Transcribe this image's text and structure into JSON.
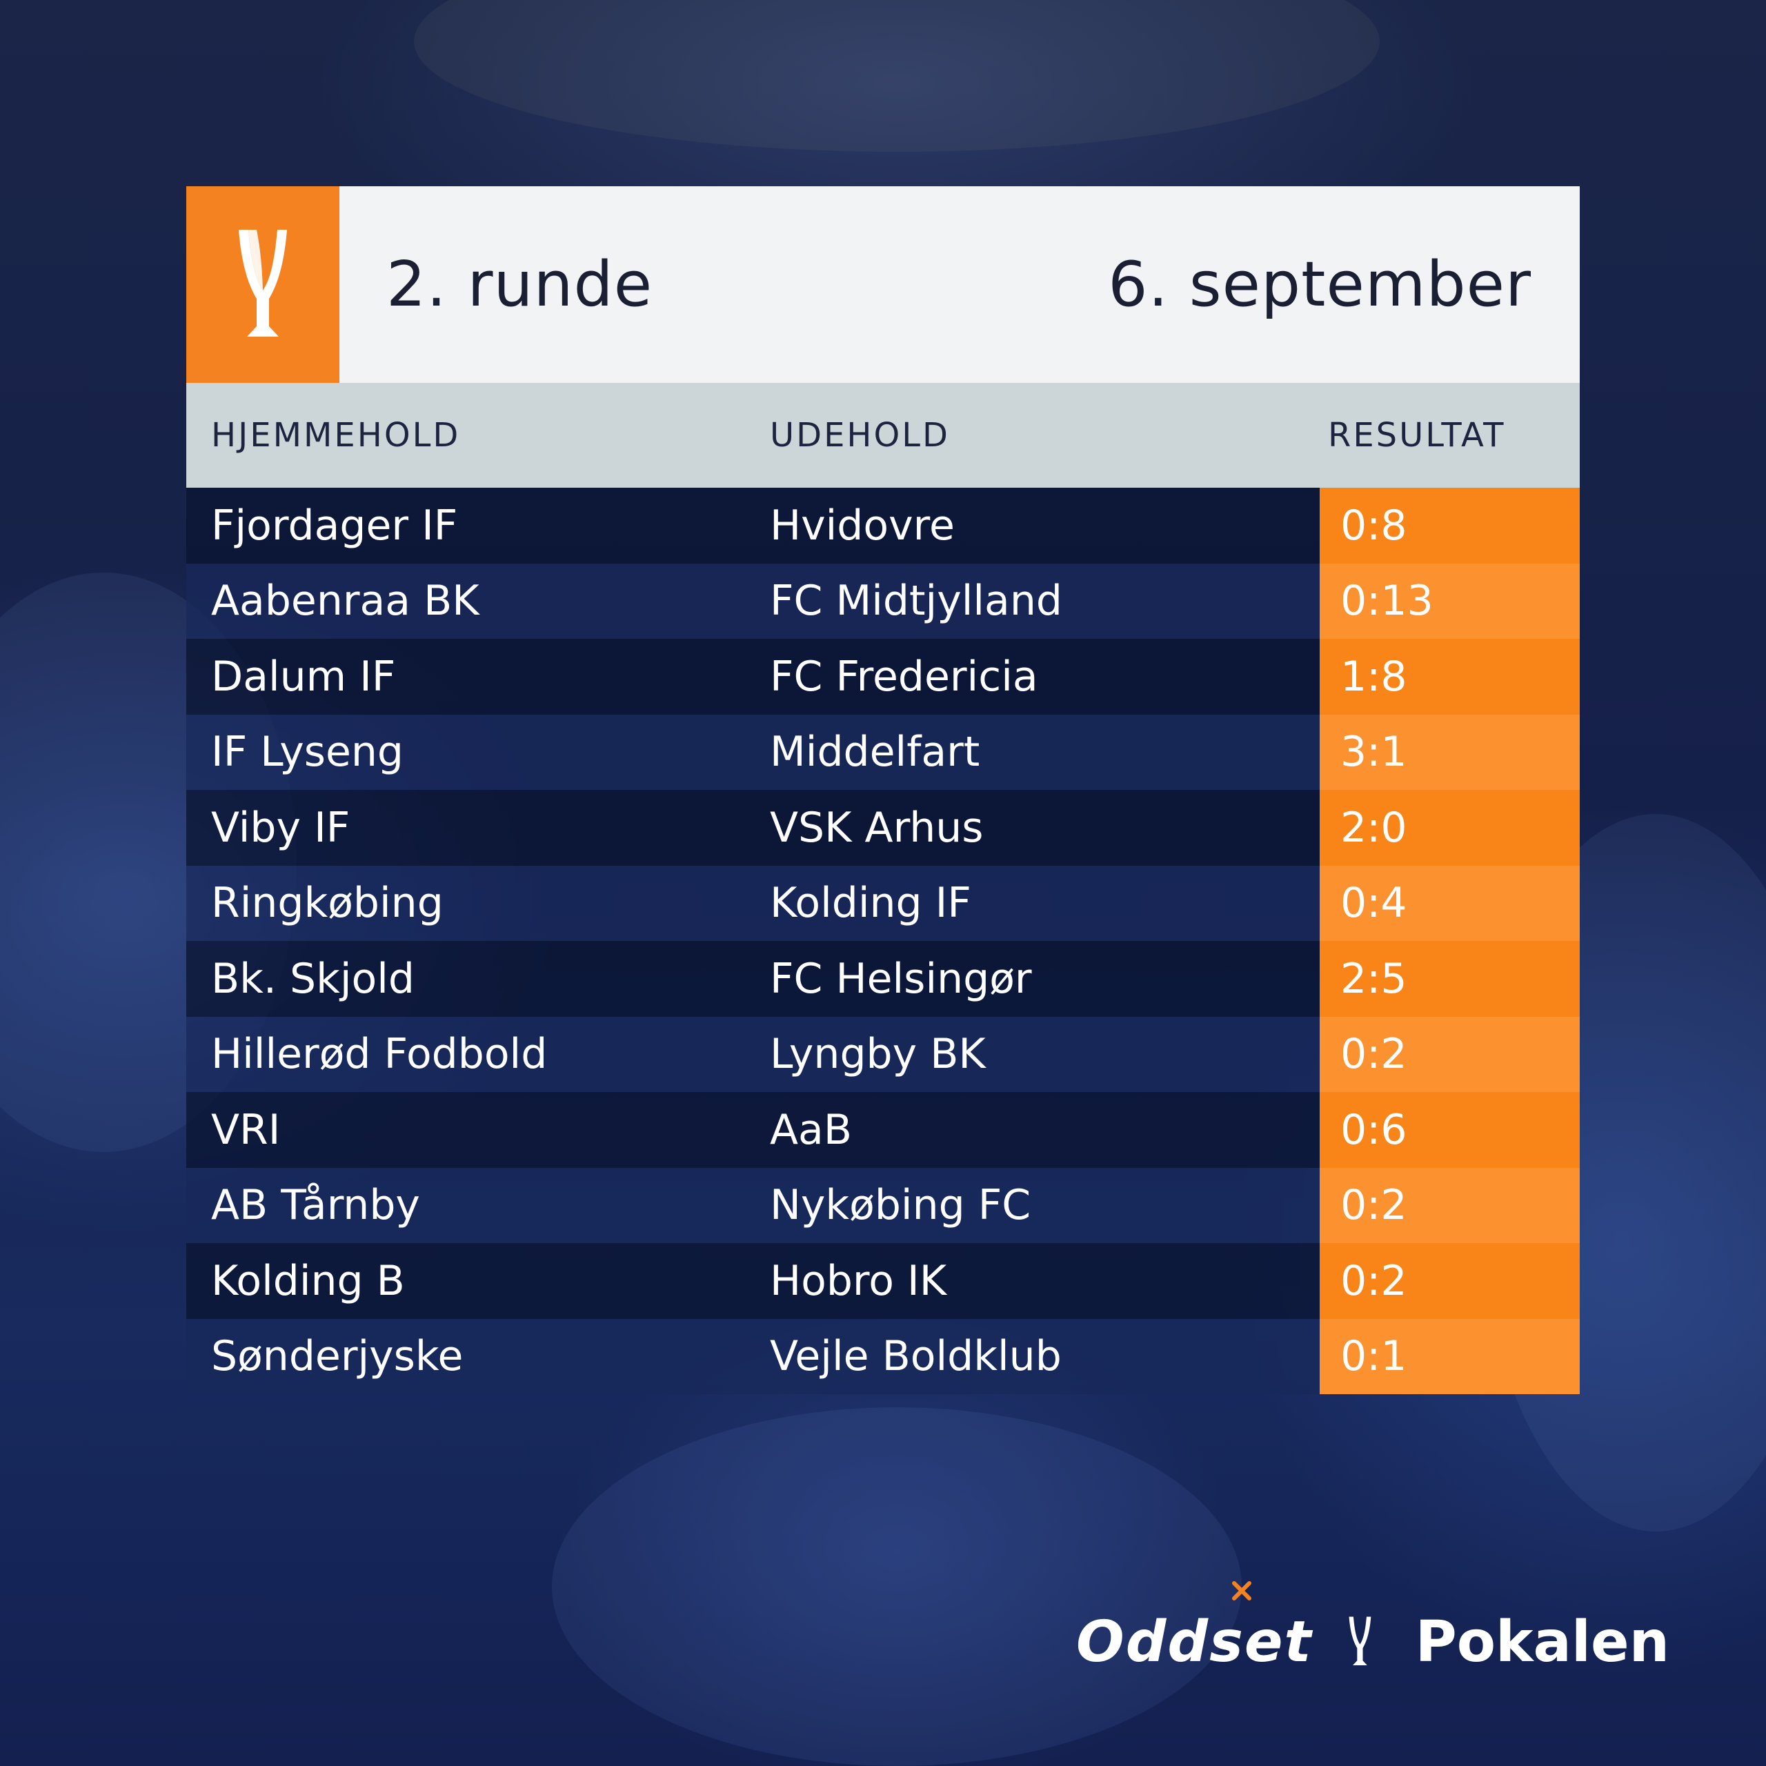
{
  "header": {
    "round": "2. runde",
    "date": "6. september"
  },
  "columns": {
    "home": "HJEMMEHOLD",
    "away": "UDEHOLD",
    "result": "RESULTAT"
  },
  "matches": [
    {
      "home": "Fjordager IF",
      "away": "Hvidovre",
      "result": "0:8"
    },
    {
      "home": "Aabenraa BK",
      "away": "FC Midtjylland",
      "result": "0:13"
    },
    {
      "home": "Dalum IF",
      "away": "FC Fredericia",
      "result": "1:8"
    },
    {
      "home": "IF Lyseng",
      "away": "Middelfart",
      "result": "3:1"
    },
    {
      "home": "Viby IF",
      "away": "VSK Arhus",
      "result": "2:0"
    },
    {
      "home": "Ringkøbing",
      "away": "Kolding IF",
      "result": "0:4"
    },
    {
      "home": "Bk. Skjold",
      "away": "FC Helsingør",
      "result": "2:5"
    },
    {
      "home": "Hillerød Fodbold",
      "away": "Lyngby BK",
      "result": "0:2"
    },
    {
      "home": "VRI",
      "away": "AaB",
      "result": "0:6"
    },
    {
      "home": "AB Tårnby",
      "away": "Nykøbing FC",
      "result": "0:2"
    },
    {
      "home": "Kolding B",
      "away": "Hobro IK",
      "result": "0:2"
    },
    {
      "home": "Sønderjyske",
      "away": "Vejle Boldklub",
      "result": "0:1"
    }
  ],
  "footer": {
    "sponsor": "Oddset",
    "competition": "Pokalen"
  },
  "colors": {
    "accent_orange": "#f58220",
    "background_navy": "#15204a",
    "header_bg": "#f2f3f5",
    "column_header_bg": "#ccd6d8"
  },
  "icons": {
    "header_logo": "trophy-icon",
    "footer_logo": "trophy-icon"
  }
}
